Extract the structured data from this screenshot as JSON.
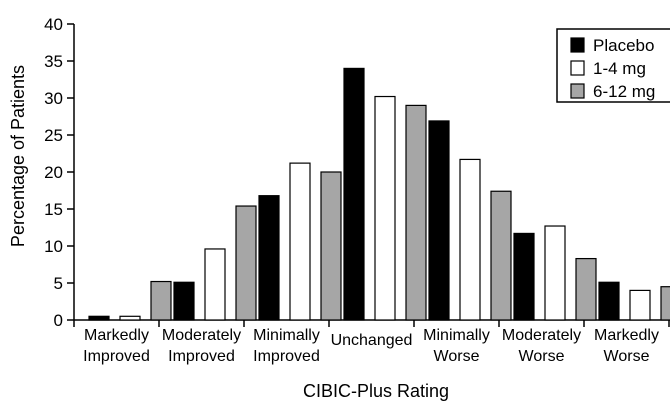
{
  "chart_data": {
    "type": "bar",
    "xlabel": "CIBIC-Plus Rating",
    "ylabel": "Percentage of Patients",
    "ylim": [
      0,
      40
    ],
    "yticks": [
      0,
      5,
      10,
      15,
      20,
      25,
      30,
      35,
      40
    ],
    "categories": [
      [
        "Markedly",
        "Improved"
      ],
      [
        "Moderately",
        "Improved"
      ],
      [
        "Minimally",
        "Improved"
      ],
      [
        "Unchanged"
      ],
      [
        "Minimally",
        "Worse"
      ],
      [
        "Moderately",
        "Worse"
      ],
      [
        "Markedly",
        "Worse"
      ]
    ],
    "series": [
      {
        "name": "Placebo",
        "color": "#000000",
        "values": [
          0.5,
          5.1,
          16.8,
          34.0,
          26.9,
          11.7,
          5.1
        ]
      },
      {
        "name": "1-4 mg",
        "color": "#ffffff",
        "values": [
          0.5,
          9.6,
          21.2,
          30.2,
          21.7,
          12.7,
          4.0
        ]
      },
      {
        "name": "6-12 mg",
        "color": "#a6a6a6",
        "values": [
          5.2,
          15.4,
          20.0,
          29.0,
          17.4,
          8.3,
          4.5
        ]
      }
    ],
    "legend_position": "top-right",
    "grid": false
  }
}
